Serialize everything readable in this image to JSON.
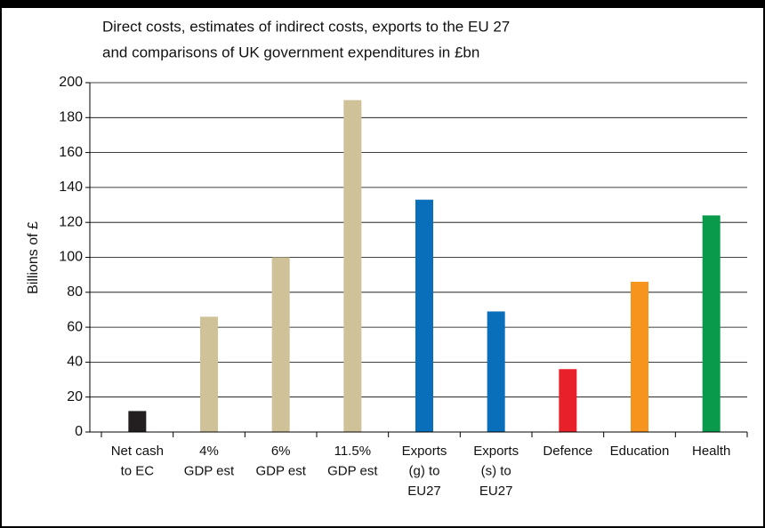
{
  "chart_data": {
    "type": "bar",
    "title": [
      "Direct costs, estimates of indirect costs, exports to the EU 27",
      "and comparisons of UK government expenditures in £bn"
    ],
    "y_label": "Billions of £",
    "categories": [
      [
        "Net cash",
        "to EC"
      ],
      [
        "4%",
        "GDP est"
      ],
      [
        "6%",
        "GDP est"
      ],
      [
        "11.5%",
        "GDP est"
      ],
      [
        "Exports",
        "(g) to",
        "EU27"
      ],
      [
        "Exports",
        "(s) to",
        "EU27"
      ],
      [
        "Defence"
      ],
      [
        "Education"
      ],
      [
        "Health"
      ]
    ],
    "values": [
      12,
      66,
      100,
      190,
      133,
      69,
      36,
      86,
      124
    ],
    "colors": [
      "#231f20",
      "#cfc198",
      "#cfc198",
      "#cfc198",
      "#0a6fba",
      "#0a6fba",
      "#e8202a",
      "#f7941d",
      "#0a9a4c"
    ],
    "ylim": [
      0,
      200
    ],
    "yticks": [
      0,
      20,
      40,
      60,
      80,
      100,
      120,
      140,
      160,
      180,
      200
    ],
    "grid": true
  }
}
